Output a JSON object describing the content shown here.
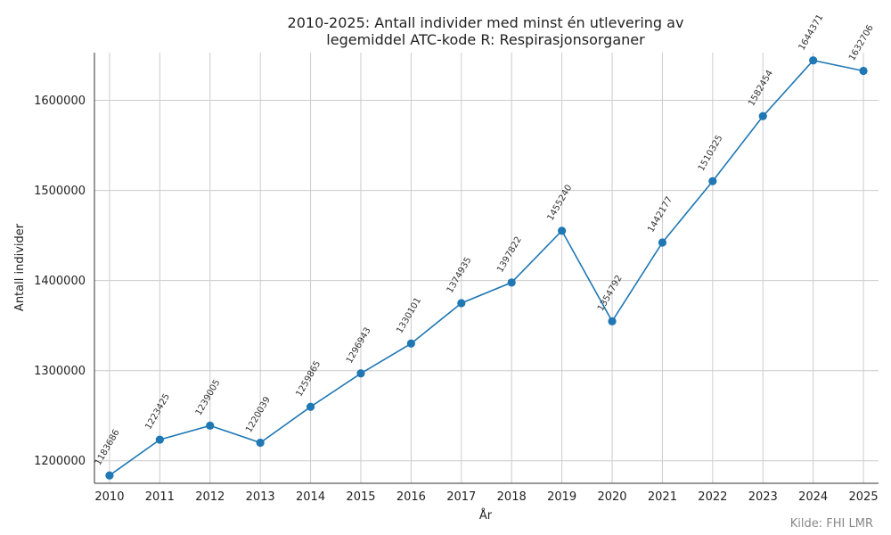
{
  "chart_data": {
    "type": "line",
    "title_line1": "2010-2025: Antall individer med minst én utlevering av",
    "title_line2": "legemiddel ATC-kode R: Respirasjonsorganer",
    "xlabel": "År",
    "ylabel": "Antall individer",
    "x": [
      2010,
      2011,
      2012,
      2013,
      2014,
      2015,
      2016,
      2017,
      2018,
      2019,
      2020,
      2021,
      2022,
      2023,
      2024,
      2025
    ],
    "values": [
      1183686,
      1223425,
      1239005,
      1220039,
      1259865,
      1296943,
      1330101,
      1374935,
      1397822,
      1455240,
      1354792,
      1442177,
      1510325,
      1582454,
      1644371,
      1632706
    ],
    "yticks": [
      1200000,
      1300000,
      1400000,
      1500000,
      1600000
    ],
    "ylim": [
      1175000,
      1653000
    ],
    "grid": true,
    "marker": "circle",
    "color": "#1f77b4"
  },
  "source": "Kilde: FHI LMR"
}
